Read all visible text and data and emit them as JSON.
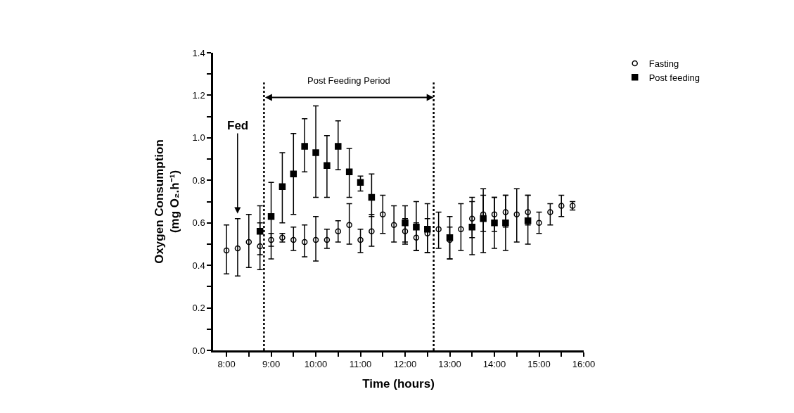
{
  "chart_data": {
    "type": "scatter",
    "xlabel": "Time (hours)",
    "ylabel": "Oxygen Consumption\n(mg O₂.h⁻¹)",
    "xlim": [
      7.7,
      16
    ],
    "ylim": [
      0,
      1.4
    ],
    "xticks": [
      {
        "value": 8,
        "label": "8:00"
      },
      {
        "value": 8.5,
        "label": null
      },
      {
        "value": 9,
        "label": "9:00"
      },
      {
        "value": 9.5,
        "label": null
      },
      {
        "value": 10,
        "label": "10:00"
      },
      {
        "value": 10.5,
        "label": null
      },
      {
        "value": 11,
        "label": "11:00"
      },
      {
        "value": 11.5,
        "label": null
      },
      {
        "value": 12,
        "label": "12:00"
      },
      {
        "value": 12.5,
        "label": null
      },
      {
        "value": 13,
        "label": "13:00"
      },
      {
        "value": 13.5,
        "label": null
      },
      {
        "value": 14,
        "label": "14:00"
      },
      {
        "value": 14.5,
        "label": null
      },
      {
        "value": 15,
        "label": "15:00"
      },
      {
        "value": 15.5,
        "label": null
      },
      {
        "value": 16,
        "label": "16:00"
      }
    ],
    "yticks": [
      {
        "value": 0,
        "label": "0.0"
      },
      {
        "value": 0.1,
        "label": null
      },
      {
        "value": 0.2,
        "label": "0.2"
      },
      {
        "value": 0.3,
        "label": null
      },
      {
        "value": 0.4,
        "label": "0.4"
      },
      {
        "value": 0.5,
        "label": null
      },
      {
        "value": 0.6,
        "label": "0.6"
      },
      {
        "value": 0.7,
        "label": null
      },
      {
        "value": 0.8,
        "label": "0.8"
      },
      {
        "value": 0.9,
        "label": null
      },
      {
        "value": 1.0,
        "label": "1.0"
      },
      {
        "value": 1.1,
        "label": null
      },
      {
        "value": 1.2,
        "label": "1.2"
      },
      {
        "value": 1.3,
        "label": null
      },
      {
        "value": 1.4,
        "label": "1.4"
      }
    ],
    "legend": "top right",
    "series": [
      {
        "name": "Post feeding",
        "color": "#000000",
        "marker": "square",
        "x": [
          8.75,
          9.0,
          9.25,
          9.5,
          9.75,
          10.0,
          10.25,
          10.5,
          10.75,
          11.0,
          11.25,
          11.5,
          11.75,
          12.0,
          12.25,
          12.5,
          12.75,
          13.0,
          13.25,
          13.5,
          13.75,
          14.0,
          14.25,
          14.5,
          14.75
        ],
        "values": [
          0.56,
          0.63,
          0.77,
          0.83,
          0.96,
          0.93,
          0.87,
          0.96,
          0.84,
          0.79,
          0.72,
          null,
          null,
          0.6,
          0.58,
          0.57,
          null,
          0.53,
          null,
          0.58,
          0.62,
          0.6,
          0.6,
          null,
          0.61
        ],
        "errors": [
          [
            0.45,
            0.68
          ],
          [
            0.43,
            0.79
          ],
          [
            0.6,
            0.93
          ],
          [
            0.64,
            1.02
          ],
          [
            0.84,
            1.09
          ],
          [
            0.72,
            1.15
          ],
          [
            0.72,
            1.01
          ],
          [
            0.85,
            1.08
          ],
          [
            0.72,
            0.95
          ],
          [
            0.75,
            0.82
          ],
          [
            0.63,
            0.83
          ],
          null,
          null,
          [
            0.51,
            0.68
          ],
          [
            0.47,
            0.7
          ],
          [
            0.46,
            0.69
          ],
          null,
          [
            0.43,
            0.63
          ],
          null,
          [
            0.45,
            0.72
          ],
          [
            0.46,
            0.76
          ],
          [
            0.48,
            0.72
          ],
          [
            0.47,
            0.73
          ],
          null,
          [
            0.5,
            0.73
          ]
        ]
      },
      {
        "name": "Fasting",
        "color": "#000000",
        "marker": "circle",
        "x": [
          8.0,
          8.25,
          8.5,
          8.75,
          9.0,
          9.25,
          9.5,
          9.75,
          10.0,
          10.25,
          10.5,
          10.75,
          11.0,
          11.25,
          11.5,
          11.75,
          12.0,
          12.25,
          12.5,
          12.75,
          13.0,
          13.25,
          13.5,
          13.75,
          14.0,
          14.25,
          14.5,
          14.75,
          15.0,
          15.25,
          15.5,
          15.75
        ],
        "values": [
          0.47,
          0.48,
          0.51,
          0.49,
          0.52,
          0.53,
          0.52,
          0.51,
          0.52,
          0.52,
          0.56,
          0.59,
          0.52,
          0.56,
          0.64,
          0.59,
          0.56,
          0.53,
          0.55,
          0.57,
          0.52,
          0.57,
          0.62,
          0.64,
          0.64,
          0.65,
          0.64,
          0.65,
          0.6,
          0.65,
          0.68,
          0.68
        ],
        "errors": [
          [
            0.36,
            0.59
          ],
          [
            0.35,
            0.62
          ],
          [
            0.39,
            0.64
          ],
          [
            0.38,
            0.6
          ],
          [
            0.49,
            0.55
          ],
          [
            0.51,
            0.55
          ],
          [
            0.47,
            0.58
          ],
          [
            0.44,
            0.59
          ],
          [
            0.42,
            0.63
          ],
          [
            0.48,
            0.57
          ],
          [
            0.51,
            0.61
          ],
          [
            0.5,
            0.69
          ],
          [
            0.46,
            0.57
          ],
          [
            0.49,
            0.64
          ],
          [
            0.55,
            0.73
          ],
          [
            0.51,
            0.68
          ],
          [
            0.5,
            0.62
          ],
          [
            0.47,
            0.6
          ],
          [
            0.46,
            0.62
          ],
          [
            0.48,
            0.65
          ],
          [
            0.43,
            0.58
          ],
          [
            0.47,
            0.69
          ],
          [
            0.53,
            0.7
          ],
          [
            0.56,
            0.73
          ],
          [
            0.56,
            0.72
          ],
          [
            0.58,
            0.73
          ],
          [
            0.51,
            0.76
          ],
          [
            0.59,
            0.73
          ],
          [
            0.55,
            0.65
          ],
          [
            0.59,
            0.69
          ],
          [
            0.63,
            0.73
          ],
          [
            0.66,
            0.7
          ]
        ]
      }
    ],
    "ref_lines": [
      {
        "axis": "x",
        "value": 8.84,
        "line_style": "dotted"
      },
      {
        "axis": "x",
        "value": 12.64,
        "line_style": "dotted"
      }
    ],
    "annotations": [
      "Post Feeding Period",
      "Fed"
    ]
  }
}
